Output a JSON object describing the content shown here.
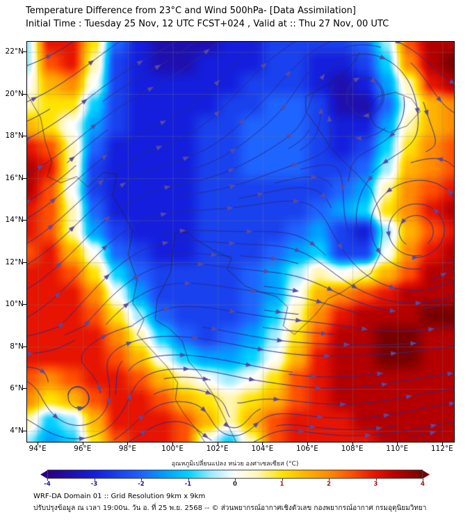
{
  "header": {
    "title": "Temperature Difference from 23°C and Wind 500hPa- [Data Assimilation]",
    "subtitle": "Initial Time : Tuesday 25 Nov, 12 UTC FCST+024 , Valid at ::  Thu 27 Nov, 00 UTC"
  },
  "footer": {
    "line1": "WRF-DA Domain 01 :: Grid Resolution 9km x 9km",
    "line2": "ปรับปรุงข้อมูล ณ เวลา 19:00น. วัน อ. ที่ 25 พ.ย. 2568 -- © ส่วนพยากรณ์อากาศเชิงตัวเลข กองพยากรณ์อากาศ กรมอุตุนิยมวิทยา"
  },
  "chart_data": {
    "type": "heatmap",
    "title": "Temperature Difference from 23°C and Wind 500hPa- [Data Assimilation]",
    "units": "°C",
    "overlay": "wind streamlines 500hPa",
    "lon_range": [
      93.5,
      112.5
    ],
    "lat_range": [
      3.5,
      22.5
    ],
    "grid_on": true,
    "x_ticks": {
      "values": [
        94,
        96,
        98,
        100,
        102,
        104,
        106,
        108,
        110,
        112
      ],
      "labels": [
        "94°E",
        "96°E",
        "98°E",
        "100°E",
        "102°E",
        "104°E",
        "106°E",
        "108°E",
        "110°E",
        "112°E"
      ]
    },
    "y_ticks": {
      "values": [
        22,
        20,
        18,
        16,
        14,
        12,
        10,
        8,
        6,
        4
      ],
      "labels": [
        "22°N",
        "20°N",
        "18°N",
        "16°N",
        "14°N",
        "12°N",
        "10°N",
        "8°N",
        "6°N",
        "4°N"
      ]
    },
    "grid": {
      "lons_start": 93.5,
      "lons_step": 1.0,
      "lats_start": 22.5,
      "lats_step": -1.0,
      "values": [
        [
          -0.5,
          3,
          3,
          1,
          -2,
          -3,
          -3.5,
          -3.5,
          -3.5,
          -3,
          -3,
          -2.5,
          -2.5,
          -2.5,
          -2.5,
          -2,
          -0.5,
          2.5,
          3.5,
          3.5
        ],
        [
          -0.5,
          2.5,
          3,
          0.5,
          -2.5,
          -3,
          -3.5,
          -3.5,
          -3,
          -3,
          -3,
          -2.5,
          -2.5,
          -3,
          -3,
          -2.5,
          -1,
          2,
          3.5,
          4
        ],
        [
          0,
          1.5,
          2,
          0,
          -2.5,
          -3,
          -3,
          -3,
          -3,
          -3,
          -2.5,
          -2.5,
          -2.5,
          -3,
          -3.5,
          -3,
          -1.5,
          0.5,
          3,
          3.5
        ],
        [
          0.5,
          1,
          1,
          -1,
          -2.5,
          -3,
          -3,
          -3,
          -3,
          -2.5,
          -2.5,
          -2,
          -2,
          -2.5,
          -3.5,
          -3.5,
          -2,
          0,
          1.5,
          2
        ],
        [
          1.5,
          1,
          0,
          -1.5,
          -2.5,
          -3,
          -3,
          -3,
          -2.5,
          -2.5,
          -2,
          -2,
          -2,
          -2.5,
          -3,
          -3,
          -1.5,
          0.5,
          1.5,
          2
        ],
        [
          3,
          2.5,
          0.5,
          -2,
          -3,
          -3,
          -3,
          -3,
          -2.5,
          -2.5,
          -2,
          -2,
          -2,
          -2.5,
          -3,
          -2.5,
          -1,
          1,
          2,
          2.5
        ],
        [
          3.5,
          3,
          0.5,
          -2.5,
          -3,
          -3,
          -3,
          -3,
          -2.5,
          -2.5,
          -2,
          -2,
          -2,
          -2.5,
          -2.5,
          -2,
          -0.5,
          1.5,
          2,
          2.5
        ],
        [
          3.5,
          2.5,
          0,
          -2.5,
          -3,
          -3,
          -3,
          -3,
          -2.5,
          -2.5,
          -2.5,
          -2.5,
          -2.5,
          -2.5,
          -2,
          -1.5,
          0.5,
          2,
          2.5,
          3
        ],
        [
          3,
          2.5,
          0.5,
          -2,
          -3,
          -3,
          -3,
          -3,
          -2.5,
          -2.5,
          -2.5,
          -2.5,
          -2.5,
          -2,
          -1.5,
          -1,
          1,
          2,
          3,
          3.5
        ],
        [
          3,
          2.5,
          0.5,
          -1.5,
          -2.5,
          -3,
          -3,
          -3,
          -2.5,
          -2.5,
          -2.5,
          -2.5,
          -2,
          -1.5,
          -2.5,
          -3,
          -0.5,
          1.5,
          2.5,
          3
        ],
        [
          2.5,
          3,
          1.5,
          0,
          -2,
          -2.5,
          -3,
          -3,
          -2.5,
          -2.5,
          -2.5,
          -2,
          -1.5,
          -1,
          -2.5,
          -2.5,
          0,
          2,
          3,
          3.5
        ],
        [
          3,
          3,
          2.5,
          1,
          -1,
          -2,
          -2.5,
          -2.5,
          -2.5,
          -2.5,
          -2,
          -1.5,
          -0.5,
          0.5,
          0,
          0.5,
          1.5,
          2.5,
          3.5,
          3.5
        ],
        [
          3,
          3,
          3,
          2,
          0,
          -1.5,
          -2.5,
          -2.5,
          -2.5,
          -2.5,
          -2,
          -1.5,
          0,
          1.5,
          2,
          2.5,
          3,
          3.5,
          3.5,
          3.5
        ],
        [
          3,
          3,
          3,
          2.5,
          1,
          -0.5,
          -2,
          -2.5,
          -2.5,
          -2.5,
          -2,
          -1,
          0.5,
          2,
          3,
          3.5,
          3.5,
          3.5,
          4,
          4
        ],
        [
          3,
          3,
          3,
          3,
          2,
          0.5,
          -1,
          -2,
          -2.5,
          -2,
          -1.5,
          -0.5,
          1,
          2.5,
          3.5,
          3.5,
          4,
          4,
          3.5,
          3.5
        ],
        [
          3,
          3,
          3,
          3,
          2.5,
          1.5,
          0,
          -1,
          -1.5,
          -1.5,
          -1,
          0,
          1.5,
          3,
          3.5,
          3.5,
          4,
          4,
          3.5,
          3.5
        ],
        [
          2.5,
          2,
          2.5,
          3,
          3,
          2.5,
          1.5,
          0.5,
          0,
          -0.5,
          0,
          1,
          2.5,
          3,
          3.5,
          3.5,
          3.5,
          3.5,
          3.5,
          3.5
        ],
        [
          2,
          1,
          1.5,
          2.5,
          3,
          3,
          2.5,
          1.5,
          1,
          0.5,
          1,
          1.5,
          2.5,
          3,
          3.5,
          3.5,
          3.5,
          3.5,
          3.5,
          3.5
        ],
        [
          0.5,
          -1,
          -0.5,
          1.5,
          3,
          3,
          3,
          2.5,
          1.5,
          0.5,
          1.5,
          2.5,
          3,
          3,
          3,
          3.5,
          3.5,
          3.5,
          3.5,
          3.5
        ],
        [
          -0.5,
          -1.5,
          -1,
          1,
          2.5,
          3,
          3,
          2.5,
          0,
          -1,
          0.5,
          2.5,
          3,
          3,
          3,
          3,
          3.5,
          3.5,
          3.5,
          3.5
        ]
      ]
    },
    "colormap_stops": [
      [
        -4,
        "#2a0080"
      ],
      [
        -3,
        "#141edc"
      ],
      [
        -2,
        "#1e64ff"
      ],
      [
        -1.5,
        "#00a0ff"
      ],
      [
        -1,
        "#00d2ff"
      ],
      [
        -0.5,
        "#a0ecff"
      ],
      [
        0,
        "#ffffff"
      ],
      [
        0.5,
        "#fff6b4"
      ],
      [
        1,
        "#ffe400"
      ],
      [
        1.5,
        "#ffb400"
      ],
      [
        2,
        "#ff8c00"
      ],
      [
        2.5,
        "#ff5000"
      ],
      [
        3,
        "#e61400"
      ],
      [
        3.5,
        "#b40000"
      ],
      [
        4,
        "#780000"
      ]
    ],
    "colorbar": {
      "title": "อุณหภูมิเปลี่ยนแปลง หน่วย องศาเซลเซียส (°C)",
      "min": -4,
      "max": 4,
      "tick_values": [
        -4,
        -3,
        -2,
        -1,
        0,
        1,
        2,
        3,
        4
      ],
      "tick_labels": [
        "-4",
        "-3",
        "-2",
        "-1",
        "0",
        "1",
        "2",
        "3",
        "4"
      ],
      "negative_label_color": "#15159b",
      "positive_label_color": "#9b1515"
    },
    "streamlines": {
      "color": "#2b2b8f",
      "arrow_color": "#5a4aa0"
    }
  }
}
